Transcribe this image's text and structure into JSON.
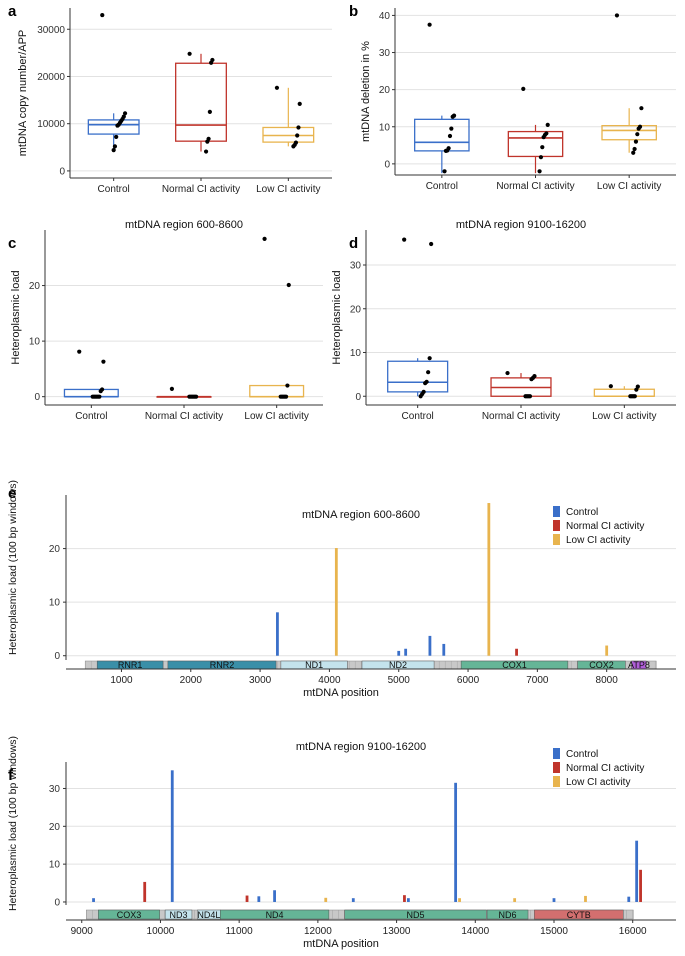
{
  "colors": {
    "control": "#3a6fc9",
    "normal": "#c0342b",
    "low": "#e8b44e",
    "grid": "#e2e2e2",
    "gene_teal": "#3a8fa8",
    "gene_light": "#c4e3ec",
    "gene_green": "#65b597",
    "gene_red": "#d36f6f",
    "gene_purple": "#b05ed8",
    "gene_gray": "#c8c8c8"
  },
  "chart_data": [
    {
      "panel": "a",
      "type": "box",
      "title": "",
      "ylabel": "mtDNA copy number/APP",
      "ylim": [
        -1500,
        34500
      ],
      "yticks": [
        0,
        10000,
        20000,
        30000
      ],
      "categories": [
        "Control",
        "Normal CI activity",
        "Low CI activity"
      ],
      "boxes": [
        {
          "q1": 7800,
          "median": 9800,
          "q3": 10800,
          "lo": 4500,
          "hi": 12200
        },
        {
          "q1": 6300,
          "median": 9700,
          "q3": 22800,
          "lo": 4100,
          "hi": 24800
        },
        {
          "q1": 6100,
          "median": 7500,
          "q3": 9200,
          "lo": 5200,
          "hi": 17600
        }
      ],
      "points": [
        [
          33000,
          12200,
          11500,
          11000,
          10600,
          10200,
          9800,
          9600,
          7200,
          5200,
          4400
        ],
        [
          24800,
          23500,
          22900,
          12500,
          6800,
          6200,
          4100
        ],
        [
          17600,
          14200,
          9200,
          7500,
          6000,
          5500,
          5200
        ]
      ]
    },
    {
      "panel": "b",
      "type": "box",
      "title": "",
      "ylabel": "mtDNA deletion in %",
      "ylim": [
        -3,
        42
      ],
      "yticks": [
        0,
        10,
        20,
        30,
        40
      ],
      "categories": [
        "Control",
        "Normal CI activity",
        "Low CI activity"
      ],
      "boxes": [
        {
          "q1": 3.5,
          "median": 5.8,
          "q3": 12,
          "lo": -2.5,
          "hi": 13
        },
        {
          "q1": 2,
          "median": 7,
          "q3": 8.7,
          "lo": -2.5,
          "hi": 10.5
        },
        {
          "q1": 6.5,
          "median": 9,
          "q3": 10.3,
          "lo": 3,
          "hi": 15
        }
      ],
      "points": [
        [
          37.5,
          13,
          12.7,
          9.5,
          7.5,
          4.2,
          3.6,
          3.5,
          -2
        ],
        [
          20.2,
          10.5,
          8.2,
          7.8,
          7.2,
          4.5,
          1.8,
          -2
        ],
        [
          40,
          15,
          10,
          9.5,
          8,
          6,
          4,
          3
        ]
      ]
    },
    {
      "panel": "c",
      "type": "box",
      "title": "mtDNA region 600-8600",
      "ylabel": "Heteroplasmic load",
      "ylim": [
        -1.5,
        30
      ],
      "yticks": [
        0,
        10,
        20
      ],
      "categories": [
        "Control",
        "Normal CI activity",
        "Low CI activity"
      ],
      "boxes": [
        {
          "q1": 0,
          "median": 0,
          "q3": 1.3,
          "lo": 0,
          "hi": 1.3
        },
        {
          "q1": 0,
          "median": 0,
          "q3": 0,
          "lo": 0,
          "hi": 0
        },
        {
          "q1": 0,
          "median": 0,
          "q3": 2.0,
          "lo": 0,
          "hi": 2.0
        }
      ],
      "points": [
        [
          8.1,
          6.3,
          1.3,
          1.0,
          0,
          0,
          0,
          0,
          0,
          0
        ],
        [
          1.4,
          0,
          0,
          0,
          0,
          0,
          0
        ],
        [
          28.4,
          20.1,
          2.0,
          0,
          0,
          0,
          0,
          0
        ]
      ]
    },
    {
      "panel": "d",
      "type": "box",
      "title": "mtDNA region 9100-16200",
      "ylabel": "Heteroplasmic load",
      "ylim": [
        -2,
        38
      ],
      "yticks": [
        0,
        10,
        20,
        30
      ],
      "categories": [
        "Control",
        "Normal CI activity",
        "Low CI activity"
      ],
      "boxes": [
        {
          "q1": 1,
          "median": 3.2,
          "q3": 8,
          "lo": 0,
          "hi": 8.7
        },
        {
          "q1": 0,
          "median": 2,
          "q3": 4.2,
          "lo": 0,
          "hi": 5.3
        },
        {
          "q1": 0,
          "median": 0,
          "q3": 1.6,
          "lo": 0,
          "hi": 2.3
        }
      ],
      "points": [
        [
          35.8,
          34.8,
          8.7,
          5.5,
          3.3,
          3,
          1,
          0.5,
          0
        ],
        [
          5.3,
          4.6,
          4.2,
          3.9,
          0,
          0,
          0,
          0
        ],
        [
          2.3,
          2.2,
          1.5,
          0,
          0,
          0,
          0
        ]
      ]
    },
    {
      "panel": "e",
      "type": "bar",
      "title": "mtDNA region 600-8600",
      "ylabel": "Heteroplasmic load (100 bp windows)",
      "xlabel": "mtDNA position",
      "xlim": [
        200,
        9000
      ],
      "ylim": [
        -0.8,
        30
      ],
      "yticks": [
        0,
        10,
        20
      ],
      "xticks": [
        1000,
        2000,
        3000,
        4000,
        5000,
        6000,
        7000,
        8000
      ],
      "legend": [
        "Control",
        "Normal CI activity",
        "Low CI activity"
      ],
      "bars": [
        [
          3250,
          8.1,
          "c"
        ],
        [
          4100,
          20.1,
          "l"
        ],
        [
          5000,
          0.9,
          "c"
        ],
        [
          5100,
          1.3,
          "c"
        ],
        [
          5450,
          3.7,
          "c"
        ],
        [
          5650,
          2.2,
          "c"
        ],
        [
          6300,
          28.5,
          "l"
        ],
        [
          6700,
          1.3,
          "n"
        ],
        [
          8000,
          1.9,
          "l"
        ]
      ],
      "genes": [
        {
          "name": "RNR1",
          "s": 650,
          "e": 1600,
          "c": "teal"
        },
        {
          "name": "RNR2",
          "s": 1670,
          "e": 3230,
          "c": "teal"
        },
        {
          "name": "ND1",
          "s": 3300,
          "e": 4260,
          "c": "light"
        },
        {
          "name": "ND2",
          "s": 4470,
          "e": 5510,
          "c": "light"
        },
        {
          "name": "COX1",
          "s": 5900,
          "e": 7440,
          "c": "green"
        },
        {
          "name": "COX2",
          "s": 7580,
          "e": 8270,
          "c": "green"
        },
        {
          "name": "ATP8",
          "s": 8360,
          "e": 8570,
          "c": "purple"
        }
      ]
    },
    {
      "panel": "f",
      "type": "bar",
      "title": "mtDNA region 9100-16200",
      "ylabel": "Heteroplasmic load (100 bp windows)",
      "xlabel": "mtDNA position",
      "xlim": [
        8800,
        16550
      ],
      "ylim": [
        -0.8,
        37
      ],
      "yticks": [
        0,
        10,
        20,
        30
      ],
      "xticks": [
        9000,
        10000,
        11000,
        12000,
        13000,
        14000,
        15000,
        16000
      ],
      "legend": [
        "Control",
        "Normal CI activity",
        "Low CI activity"
      ],
      "bars": [
        [
          9150,
          1,
          "c"
        ],
        [
          9800,
          5.3,
          "n"
        ],
        [
          10150,
          34.8,
          "c"
        ],
        [
          11100,
          1.7,
          "n"
        ],
        [
          11250,
          1.5,
          "c"
        ],
        [
          11450,
          3.1,
          "c"
        ],
        [
          12100,
          1.1,
          "l"
        ],
        [
          12450,
          1,
          "c"
        ],
        [
          13100,
          1.8,
          "n"
        ],
        [
          13150,
          1,
          "c"
        ],
        [
          13750,
          31.5,
          "c"
        ],
        [
          13800,
          1,
          "l"
        ],
        [
          14500,
          1,
          "l"
        ],
        [
          15000,
          1,
          "c"
        ],
        [
          15400,
          1.6,
          "l"
        ],
        [
          15950,
          1.4,
          "c"
        ],
        [
          16050,
          16.2,
          "c"
        ],
        [
          16100,
          8.5,
          "n"
        ]
      ],
      "genes": [
        {
          "name": "COX3",
          "s": 9210,
          "e": 9990,
          "c": "green"
        },
        {
          "name": "ND3",
          "s": 10060,
          "e": 10400,
          "c": "light"
        },
        {
          "name": "ND4L",
          "s": 10470,
          "e": 10760,
          "c": "light"
        },
        {
          "name": "ND4",
          "s": 10760,
          "e": 12140,
          "c": "green"
        },
        {
          "name": "ND5",
          "s": 12340,
          "e": 14140,
          "c": "green"
        },
        {
          "name": "ND6",
          "s": 14150,
          "e": 14670,
          "c": "green"
        },
        {
          "name": "CYTB",
          "s": 14750,
          "e": 15880,
          "c": "red"
        }
      ]
    }
  ]
}
